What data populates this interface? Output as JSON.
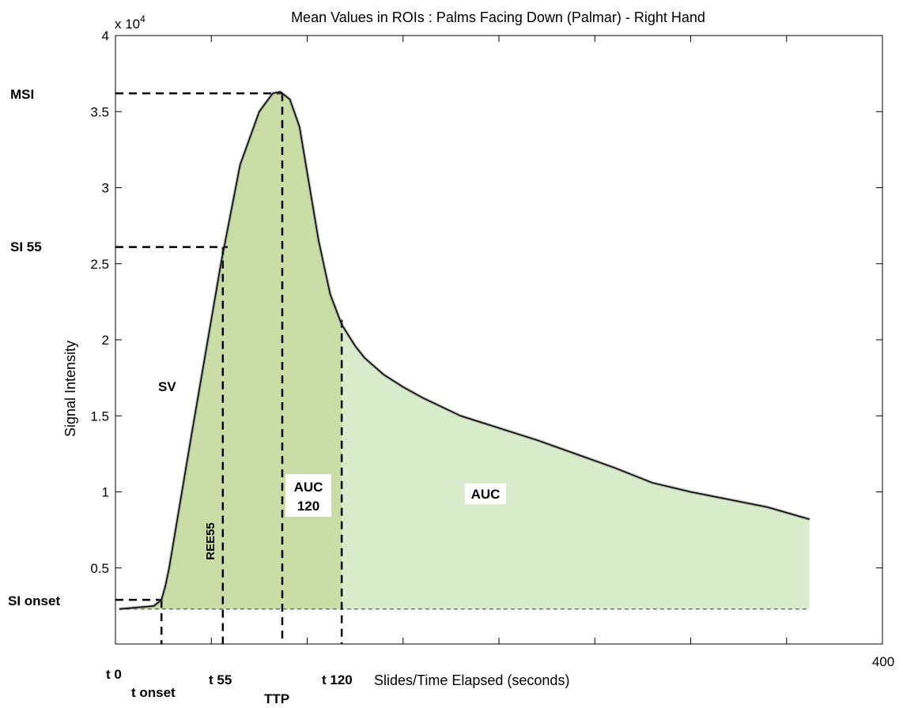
{
  "chart_data": {
    "type": "area",
    "title": "Mean Values in ROIs : Palms Facing Down (Palmar) - Right Hand",
    "xlabel": "Slides/Time Elapsed (seconds)",
    "ylabel": "Signal Intensity",
    "xlim": [
      0,
      400
    ],
    "ylim": [
      0,
      40000
    ],
    "x_tick_labels": [
      "400"
    ],
    "y_ticks": [
      5000,
      10000,
      15000,
      20000,
      25000,
      30000,
      35000,
      40000
    ],
    "y_tick_labels": [
      "0.5",
      "1",
      "1.5",
      "2",
      "2.5",
      "3",
      "3.5",
      "4"
    ],
    "y_multiplier": "x 10",
    "y_multiplier_exp": "4",
    "grid": false,
    "series": [
      {
        "x": [
          2,
          20,
          24,
          26,
          28,
          40,
          55,
          65,
          75,
          82,
          86,
          91,
          96,
          100,
          106,
          112,
          118,
          125,
          130,
          140,
          150,
          160,
          170,
          180,
          200,
          220,
          240,
          260,
          280,
          300,
          320,
          340,
          362
        ],
        "y": [
          2300,
          2500,
          2900,
          3800,
          5000,
          14000,
          25000,
          31500,
          35000,
          36200,
          36300,
          35800,
          34000,
          31000,
          26500,
          23000,
          21000,
          19600,
          18800,
          17700,
          16900,
          16200,
          15600,
          15000,
          14200,
          13400,
          12500,
          11600,
          10600,
          10000,
          9500,
          9000,
          8200
        ]
      }
    ],
    "baseline": 2300,
    "auc120_end_x": 118,
    "markers": {
      "t0": 2,
      "t_onset": 24,
      "t55": 56,
      "ttp": 87,
      "t120": 118,
      "si_onset": 2900,
      "si55": 26100,
      "msi": 36200
    },
    "labels": {
      "msi": "MSI",
      "si55": "SI 55",
      "si_onset": "SI onset",
      "sv": "SV",
      "ree55": "REE55",
      "auc120_line1": "AUC",
      "auc120_line2": "120",
      "auc": "AUC",
      "t0": "t 0",
      "t_onset": "t onset",
      "t55": "t 55",
      "ttp": "TTP",
      "t120": "t 120"
    },
    "colors": {
      "auc120_fill": "#c9dea6",
      "auc_fill": "#d8ebcb",
      "curve": "#000000",
      "dashed": "#000000"
    }
  }
}
